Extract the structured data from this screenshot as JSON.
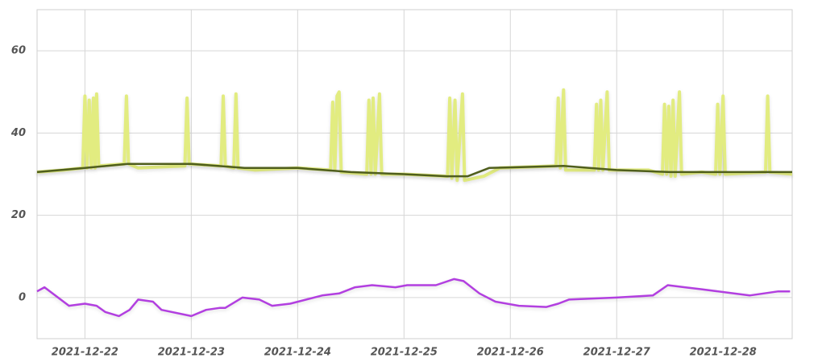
{
  "chart_data": {
    "type": "line",
    "xlim": [
      -0.45,
      6.65
    ],
    "xticks": [
      {
        "value": 0,
        "label": "2021-12-22"
      },
      {
        "value": 1,
        "label": "2021-12-23"
      },
      {
        "value": 2,
        "label": "2021-12-24"
      },
      {
        "value": 3,
        "label": "2021-12-25"
      },
      {
        "value": 4,
        "label": "2021-12-26"
      },
      {
        "value": 5,
        "label": "2021-12-27"
      },
      {
        "value": 6,
        "label": "2021-12-28"
      }
    ],
    "ylim": [
      -10,
      70
    ],
    "yticks": [
      0,
      20,
      40,
      60
    ],
    "grid": true,
    "series": [
      {
        "color": "#e2ec80",
        "x": [
          -0.45,
          -0.2,
          -0.02,
          0,
          0.02,
          0.04,
          0.06,
          0.08,
          0.095,
          0.11,
          0.13,
          0.37,
          0.39,
          0.41,
          0.5,
          0.94,
          0.96,
          0.98,
          1.28,
          1.3,
          1.32,
          1.4,
          1.42,
          1.44,
          1.6,
          2.0,
          2.31,
          2.33,
          2.35,
          2.37,
          2.39,
          2.41,
          2.65,
          2.67,
          2.69,
          2.71,
          2.73,
          2.77,
          2.79,
          3.0,
          3.41,
          3.43,
          3.45,
          3.48,
          3.5,
          3.55,
          3.57,
          3.75,
          3.9,
          4.43,
          4.45,
          4.47,
          4.5,
          4.52,
          4.79,
          4.81,
          4.83,
          4.85,
          4.87,
          4.91,
          4.93,
          5.3,
          5.43,
          5.45,
          5.47,
          5.49,
          5.51,
          5.53,
          5.55,
          5.59,
          5.61,
          5.8,
          5.93,
          5.95,
          5.97,
          6.0,
          6.02,
          6.4,
          6.42,
          6.44,
          6.65
        ],
        "values": [
          30.5,
          31,
          31.5,
          49,
          31.5,
          48,
          31.5,
          48.5,
          31.5,
          49.5,
          32,
          32.5,
          49,
          32.5,
          31.5,
          32,
          48.5,
          32.5,
          32,
          49,
          32,
          31.5,
          49.5,
          31.5,
          31,
          31.5,
          31,
          47.5,
          31,
          49,
          50,
          30.5,
          30,
          48,
          30,
          48.5,
          30,
          49.5,
          30,
          30,
          29.5,
          48.5,
          29,
          48,
          28.5,
          49.5,
          28.5,
          29.5,
          31.5,
          32,
          48.5,
          31.5,
          50.5,
          31,
          31,
          47,
          31,
          48,
          31,
          50,
          31,
          31,
          30,
          47,
          30,
          46.5,
          29.5,
          48,
          29.5,
          50,
          30,
          30.5,
          30,
          47,
          30,
          49,
          30,
          30.5,
          49,
          30.5,
          30
        ]
      },
      {
        "color": "#4f5e1c",
        "x": [
          -0.45,
          0,
          0.4,
          1,
          1.5,
          2,
          2.5,
          3,
          3.4,
          3.6,
          3.8,
          4.5,
          5,
          5.5,
          6,
          6.65
        ],
        "values": [
          30.5,
          31.5,
          32.5,
          32.5,
          31.5,
          31.5,
          30.5,
          30,
          29.5,
          29.5,
          31.5,
          32,
          31,
          30.5,
          30.5,
          30.5
        ]
      },
      {
        "color": "#b23fe0",
        "x": [
          -0.45,
          -0.38,
          -0.15,
          0,
          0.11,
          0.19,
          0.32,
          0.42,
          0.5,
          0.64,
          0.72,
          1,
          1.14,
          1.27,
          1.32,
          1.48,
          1.64,
          1.76,
          1.93,
          2.23,
          2.39,
          2.54,
          2.7,
          2.92,
          3.03,
          3.3,
          3.47,
          3.56,
          3.71,
          3.86,
          4.08,
          4.34,
          4.45,
          4.55,
          5,
          5.34,
          5.48,
          5.64,
          5.8,
          6.25,
          6.52,
          6.63
        ],
        "values": [
          1.5,
          2.5,
          -2,
          -1.5,
          -2,
          -3.5,
          -4.5,
          -3,
          -0.5,
          -1,
          -3,
          -4.5,
          -3,
          -2.5,
          -2.5,
          0,
          -0.5,
          -2,
          -1.5,
          0.5,
          1,
          2.5,
          3,
          2.5,
          3,
          3,
          4.5,
          4,
          1,
          -1,
          -2,
          -2.3,
          -1.5,
          -0.5,
          0,
          0.5,
          3,
          2.5,
          2,
          0.5,
          1.5,
          1.5
        ]
      }
    ]
  }
}
